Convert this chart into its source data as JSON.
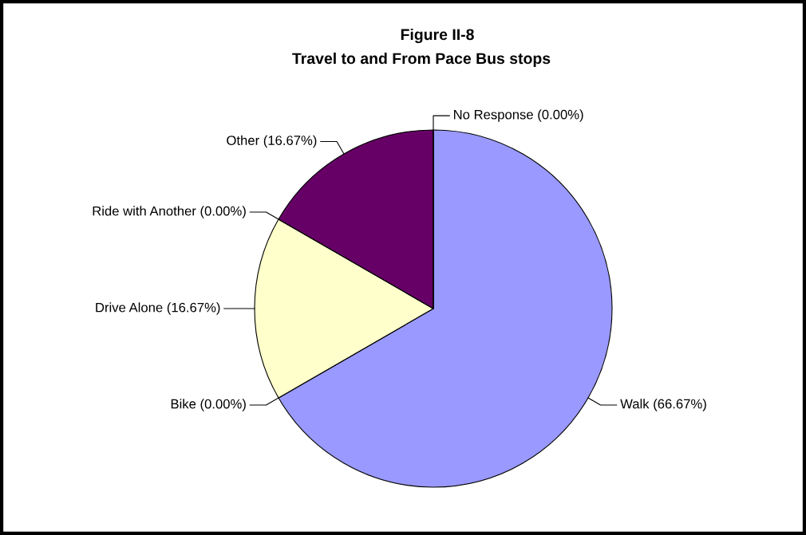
{
  "chart_data": {
    "type": "pie",
    "title": "Figure II-8",
    "subtitle": "Travel to and From Pace Bus stops",
    "categories": [
      "Walk",
      "Bike",
      "Drive Alone",
      "Ride with Another",
      "Other",
      "No Response"
    ],
    "values": [
      66.67,
      0,
      16.67,
      0,
      16.67,
      0
    ],
    "value_labels": [
      "(66.67%)",
      "(0.00%)",
      "(16.67%)",
      "(0.00%)",
      "(16.67%)",
      "(0.00%)"
    ],
    "colors": [
      "#9999ff",
      "#993366",
      "#ffffcc",
      "#ccffff",
      "#660066",
      "#ff8080"
    ]
  }
}
